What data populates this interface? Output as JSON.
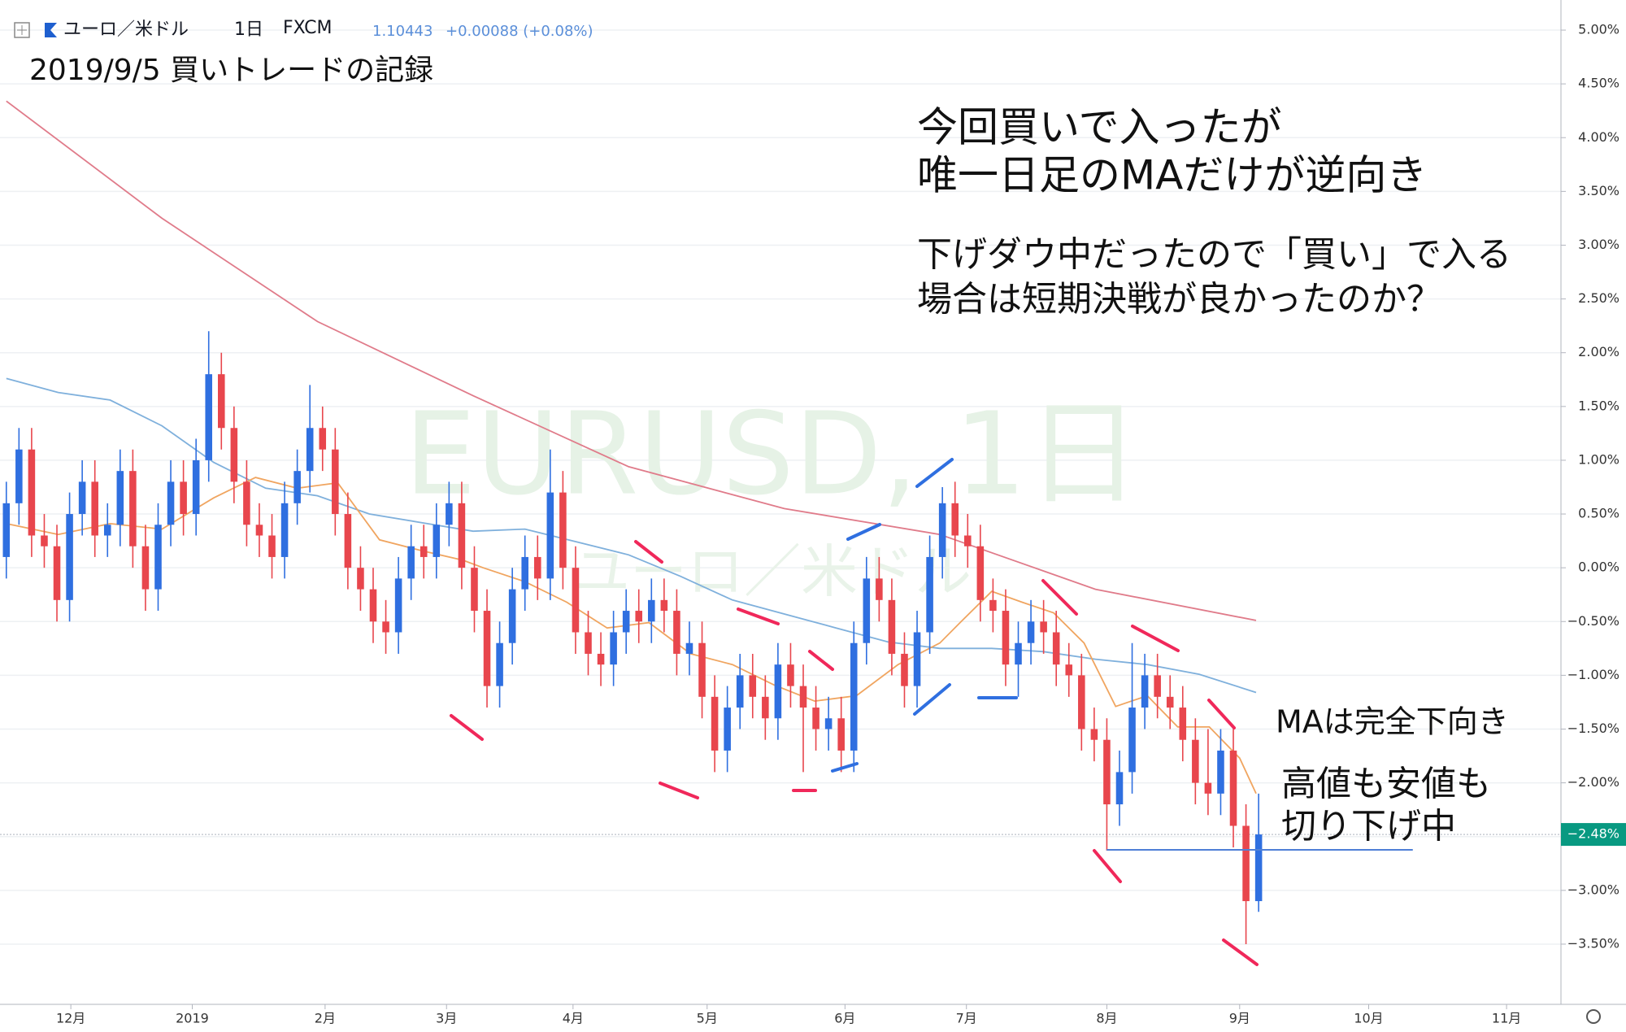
{
  "chart_data": {
    "type": "candlestick",
    "header": {
      "symbol": "ユーロ／米ドル",
      "interval": "1日",
      "source": "FXCM",
      "price": "1.10443",
      "change": "+0.00088 (+0.08%)"
    },
    "title": "2019/9/5 買いトレードの記録",
    "annotations": [
      "今回買いで入ったが",
      "唯一日足のMAだけが逆向き",
      "下げダウ中だったので「買い」で入る",
      "場合は短期決戦が良かったのか？",
      "MAは完全下向き",
      "高値も安値も",
      "切り下げ中"
    ],
    "watermark": [
      "EURUSD, 1日",
      "ユーロ／米ドル"
    ],
    "up_color": "#2f6fe0",
    "down_color": "#e8464d",
    "open": [
      0.1,
      0.6,
      1.1,
      0.3,
      0.2,
      -0.3,
      0.5,
      0.8,
      0.3,
      0.4,
      0.9,
      0.2,
      -0.2,
      0.4,
      0.8,
      0.5,
      1.0,
      1.8,
      1.3,
      0.8,
      0.4,
      0.3,
      0.1,
      0.6,
      0.9,
      1.3,
      1.1,
      0.5,
      0.0,
      -0.2,
      -0.5,
      -0.6,
      -0.1,
      0.2,
      0.1,
      0.4,
      0.6,
      0.0,
      -0.4,
      -1.1,
      -0.7,
      -0.2,
      0.1,
      -0.1,
      0.7,
      0.0,
      -0.6,
      -0.8,
      -0.9,
      -0.6,
      -0.4,
      -0.5,
      -0.3,
      -0.4,
      -0.8,
      -0.7,
      -1.2,
      -1.7,
      -1.3,
      -1.0,
      -1.2,
      -1.4,
      -0.9,
      -1.1,
      -1.3,
      -1.5,
      -1.4,
      -1.7,
      -0.7,
      -0.1,
      -0.3,
      -0.8,
      -1.1,
      -0.6,
      0.1,
      0.6,
      0.3,
      0.2,
      -0.3,
      -0.4,
      -0.9,
      -0.7,
      -0.5,
      -0.6,
      -0.9,
      -1.0,
      -1.5,
      -1.6,
      -2.2,
      -1.9,
      -1.3,
      -1.0,
      -1.2,
      -1.3,
      -1.6,
      -2.0,
      -2.1,
      -1.7,
      -2.4,
      -3.1
    ],
    "high": [
      0.8,
      1.3,
      1.3,
      0.5,
      0.4,
      0.7,
      1.0,
      1.0,
      0.6,
      1.1,
      1.1,
      0.4,
      0.6,
      1.0,
      1.0,
      1.2,
      2.2,
      2.0,
      1.5,
      1.0,
      0.6,
      0.5,
      0.8,
      1.1,
      1.7,
      1.5,
      1.3,
      0.7,
      0.2,
      0.0,
      -0.3,
      0.1,
      0.4,
      0.4,
      0.6,
      0.8,
      0.8,
      0.2,
      -0.2,
      -0.5,
      0.0,
      0.3,
      0.3,
      1.1,
      0.9,
      0.2,
      -0.4,
      -0.6,
      -0.4,
      -0.2,
      -0.2,
      -0.1,
      -0.1,
      -0.2,
      -0.5,
      -0.5,
      -1.0,
      -1.1,
      -0.8,
      -0.8,
      -1.0,
      -0.7,
      -0.7,
      -0.9,
      -1.1,
      -1.2,
      -1.2,
      -0.5,
      0.1,
      0.1,
      -0.1,
      -0.6,
      -0.4,
      0.3,
      0.75,
      0.8,
      0.5,
      0.4,
      -0.1,
      -0.2,
      -0.5,
      -0.3,
      -0.3,
      -0.4,
      -0.7,
      -0.8,
      -1.3,
      -1.4,
      -1.7,
      -0.7,
      -0.8,
      -0.8,
      -1.0,
      -1.1,
      -1.4,
      -1.5,
      -1.5,
      -1.5,
      -2.2,
      -2.1
    ],
    "low": [
      -0.1,
      0.4,
      0.1,
      0.0,
      -0.5,
      -0.5,
      0.3,
      0.1,
      0.1,
      0.2,
      0.0,
      -0.4,
      -0.4,
      0.2,
      0.3,
      0.3,
      0.8,
      1.1,
      0.6,
      0.2,
      0.1,
      -0.1,
      -0.1,
      0.4,
      0.7,
      0.9,
      0.3,
      -0.2,
      -0.4,
      -0.7,
      -0.8,
      -0.8,
      -0.3,
      -0.1,
      -0.1,
      0.2,
      -0.2,
      -0.6,
      -1.3,
      -1.3,
      -0.9,
      -0.4,
      -0.3,
      -0.3,
      -0.2,
      -0.8,
      -1.0,
      -1.1,
      -1.1,
      -0.8,
      -0.7,
      -0.7,
      -0.6,
      -1.0,
      -1.0,
      -1.4,
      -1.9,
      -1.9,
      -1.5,
      -1.4,
      -1.6,
      -1.6,
      -1.3,
      -1.9,
      -1.7,
      -1.7,
      -1.9,
      -1.9,
      -0.9,
      -0.5,
      -1.0,
      -1.3,
      -1.3,
      -0.8,
      -0.1,
      0.1,
      0.0,
      -0.5,
      -0.6,
      -1.1,
      -1.2,
      -0.9,
      -0.8,
      -1.1,
      -1.2,
      -1.7,
      -1.8,
      -2.63,
      -2.4,
      -2.1,
      -1.5,
      -1.4,
      -1.5,
      -1.8,
      -2.2,
      -2.3,
      -2.3,
      -2.6,
      -3.5,
      -3.2
    ],
    "close": [
      0.6,
      1.1,
      0.3,
      0.2,
      -0.3,
      0.5,
      0.8,
      0.3,
      0.4,
      0.9,
      0.2,
      -0.2,
      0.4,
      0.8,
      0.5,
      1.0,
      1.8,
      1.3,
      0.8,
      0.4,
      0.3,
      0.1,
      0.6,
      0.9,
      1.3,
      1.1,
      0.5,
      0.0,
      -0.2,
      -0.5,
      -0.6,
      -0.1,
      0.2,
      0.1,
      0.4,
      0.6,
      0.0,
      -0.4,
      -1.1,
      -0.7,
      -0.2,
      0.1,
      -0.1,
      0.7,
      0.0,
      -0.6,
      -0.8,
      -0.9,
      -0.6,
      -0.4,
      -0.5,
      -0.3,
      -0.4,
      -0.8,
      -0.7,
      -1.2,
      -1.7,
      -1.3,
      -1.0,
      -1.2,
      -1.4,
      -0.9,
      -1.1,
      -1.3,
      -1.5,
      -1.4,
      -1.7,
      -0.7,
      -0.1,
      -0.3,
      -0.8,
      -1.1,
      -0.6,
      0.1,
      0.6,
      0.3,
      0.2,
      -0.3,
      -0.4,
      -0.9,
      -0.7,
      -0.5,
      -0.6,
      -0.9,
      -1.0,
      -1.5,
      -1.6,
      -2.2,
      -1.9,
      -1.3,
      -1.0,
      -1.2,
      -1.3,
      -1.6,
      -2.0,
      -2.1,
      -1.7,
      -2.4,
      -3.1,
      -2.48
    ],
    "ma": [
      {
        "color": "#e07b8a",
        "x": [
          0,
          12.3,
          24.6,
          36.9,
          49.2,
          61.5,
          73.8,
          82,
          86.1,
          98.8
        ],
        "values": [
          4.34,
          3.25,
          2.29,
          1.6,
          0.94,
          0.55,
          0.31,
          -0.03,
          -0.2,
          -0.49
        ]
      },
      {
        "color": "#7fb0dc",
        "x": [
          0,
          4.1,
          8.2,
          12.3,
          16.4,
          20.5,
          24.6,
          28.7,
          32.8,
          36.9,
          41,
          45.1,
          49.2,
          53.3,
          57.4,
          61.5,
          65.6,
          69.7,
          73.8,
          77.9,
          82,
          86.1,
          90.2,
          94.3,
          98.8
        ],
        "values": [
          1.76,
          1.63,
          1.56,
          1.32,
          0.98,
          0.74,
          0.67,
          0.5,
          0.42,
          0.34,
          0.36,
          0.24,
          0.12,
          -0.08,
          -0.3,
          -0.43,
          -0.56,
          -0.69,
          -0.75,
          -0.75,
          -0.78,
          -0.85,
          -0.9,
          -0.99,
          -1.16
        ]
      },
      {
        "color": "#f0a560",
        "x": [
          0,
          4.1,
          8.2,
          12.3,
          16.4,
          19.7,
          23,
          26.2,
          29.5,
          32.8,
          36.1,
          37.7,
          41,
          44.3,
          47.5,
          50.8,
          54.1,
          57.4,
          60.7,
          63.9,
          67.2,
          70.5,
          73.8,
          75.4,
          77.9,
          80.3,
          82.8,
          85.2,
          87.7,
          90.2,
          92.6,
          95.1,
          97.5,
          98.8
        ],
        "values": [
          0.41,
          0.31,
          0.41,
          0.36,
          0.65,
          0.84,
          0.74,
          0.79,
          0.26,
          0.16,
          0.07,
          0,
          -0.13,
          -0.32,
          -0.56,
          -0.51,
          -0.8,
          -0.9,
          -1.09,
          -1.24,
          -1.19,
          -0.9,
          -0.7,
          -0.51,
          -0.22,
          -0.32,
          -0.42,
          -0.7,
          -1.29,
          -1.19,
          -1.48,
          -1.48,
          -1.77,
          -2.1
        ]
      }
    ],
    "last_price": {
      "value": -2.48,
      "label": "−2.48%",
      "color": "#089981"
    },
    "xlim": [
      -0.5,
      122.9
    ],
    "ylim": [
      -4.06,
      5.28
    ],
    "xticks": [
      {
        "value": 5.1,
        "label": "12月"
      },
      {
        "value": 14.7,
        "label": "2019"
      },
      {
        "value": 25.2,
        "label": "2月"
      },
      {
        "value": 34.8,
        "label": "3月"
      },
      {
        "value": 44.8,
        "label": "4月"
      },
      {
        "value": 55.4,
        "label": "5月"
      },
      {
        "value": 66.3,
        "label": "6月"
      },
      {
        "value": 75.9,
        "label": "7月"
      },
      {
        "value": 87.0,
        "label": "8月"
      },
      {
        "value": 97.5,
        "label": "9月"
      },
      {
        "value": 107.7,
        "label": "10月"
      },
      {
        "value": 118.6,
        "label": "11月"
      }
    ],
    "yticks": [
      {
        "value": 5.0,
        "label": "5.00%"
      },
      {
        "value": 4.5,
        "label": "4.50%"
      },
      {
        "value": 4.0,
        "label": "4.00%"
      },
      {
        "value": 3.5,
        "label": "3.50%"
      },
      {
        "value": 3.0,
        "label": "3.00%"
      },
      {
        "value": 2.5,
        "label": "2.50%"
      },
      {
        "value": 2.0,
        "label": "2.00%"
      },
      {
        "value": 1.5,
        "label": "1.50%"
      },
      {
        "value": 1.0,
        "label": "1.00%"
      },
      {
        "value": 0.5,
        "label": "0.50%"
      },
      {
        "value": 0,
        "label": "0.00%"
      },
      {
        "value": -0.5,
        "label": "−0.50%"
      },
      {
        "value": -1.0,
        "label": "−1.00%"
      },
      {
        "value": -1.5,
        "label": "−1.50%"
      },
      {
        "value": -2.0,
        "label": "−2.00%"
      },
      {
        "value": -2.5,
        "label": "−2.50%"
      },
      {
        "value": -3.0,
        "label": "−3.00%"
      },
      {
        "value": -3.5,
        "label": "−3.50%"
      }
    ],
    "grid": true
  }
}
